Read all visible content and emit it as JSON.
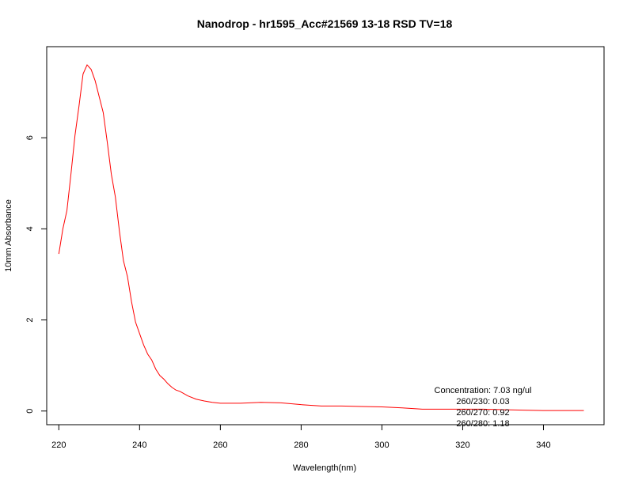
{
  "chart_data": {
    "type": "line",
    "title": "Nanodrop - hr1595_Acc#21569 13-18 RSD TV=18",
    "xlabel": "Wavelength(nm)",
    "ylabel": "10mm Absorbance",
    "xlim": [
      217,
      355
    ],
    "ylim": [
      -0.3,
      8.0
    ],
    "xticks": [
      220,
      240,
      260,
      280,
      300,
      320,
      340
    ],
    "yticks": [
      0,
      2,
      4,
      6
    ],
    "grid": false,
    "line_color": "#ff0000",
    "series": [
      {
        "x": [
          220,
          221,
          222,
          223,
          224,
          225,
          226,
          227,
          228,
          229,
          230,
          231,
          232,
          233,
          234,
          235,
          236,
          237,
          238,
          239,
          240,
          241,
          242,
          243,
          244,
          245,
          246,
          247,
          248,
          249,
          250,
          252,
          254,
          256,
          258,
          260,
          265,
          270,
          275,
          280,
          285,
          290,
          295,
          300,
          305,
          310,
          315,
          320,
          325,
          330,
          335,
          340,
          345,
          350
        ],
        "y": [
          3.45,
          4.0,
          4.4,
          5.2,
          6.05,
          6.7,
          7.4,
          7.6,
          7.5,
          7.25,
          6.9,
          6.55,
          5.9,
          5.2,
          4.7,
          3.95,
          3.3,
          2.95,
          2.4,
          1.95,
          1.7,
          1.45,
          1.25,
          1.12,
          0.92,
          0.78,
          0.7,
          0.6,
          0.52,
          0.46,
          0.43,
          0.33,
          0.26,
          0.22,
          0.19,
          0.17,
          0.17,
          0.19,
          0.18,
          0.14,
          0.11,
          0.11,
          0.1,
          0.09,
          0.07,
          0.04,
          0.04,
          0.04,
          0.04,
          0.03,
          0.02,
          0.01,
          0.01,
          0.01
        ]
      }
    ],
    "annotations": [
      "Concentration: 7.03 ng/ul",
      "260/230: 0.03",
      "260/270: 0.92",
      "260/280: 1.18"
    ]
  }
}
